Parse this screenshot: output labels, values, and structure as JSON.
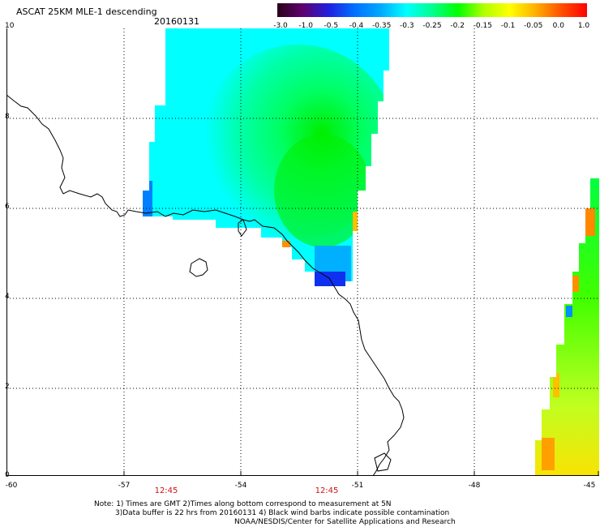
{
  "header": {
    "title": "ASCAT 25KM MLE-1 descending",
    "date": "20160131"
  },
  "colorbar": {
    "labels": [
      "-3.0",
      "-1.0",
      "-0.5",
      "-0.4",
      "-0.35",
      "-0.3",
      "-0.25",
      "-0.2",
      "-0.15",
      "-0.1",
      "-0.05",
      "0.0",
      "1.0"
    ],
    "colors": [
      "#2a0018",
      "#600070",
      "#2020e0",
      "#0070ff",
      "#00a8ff",
      "#00ffff",
      "#00ff90",
      "#00ff00",
      "#b0ff00",
      "#ffff00",
      "#ffb000",
      "#ff5000",
      "#ff0000"
    ]
  },
  "axes": {
    "lat_labels": [
      "10",
      "8",
      "6",
      "4",
      "2",
      "0"
    ],
    "lon_labels": [
      "-60",
      "-57",
      "-54",
      "-51",
      "-48",
      "-45"
    ]
  },
  "times": [
    "12:45",
    "12:45"
  ],
  "notes": [
    "Note: 1) Times are GMT 2)Times along bottom correspond to measurement at 5N",
    "3)Data buffer is 22 hrs from 20160131 4) Black wind barbs indicate possible contamination",
    "NOAA/NESDIS/Center for Satellite Applications and Research"
  ]
}
